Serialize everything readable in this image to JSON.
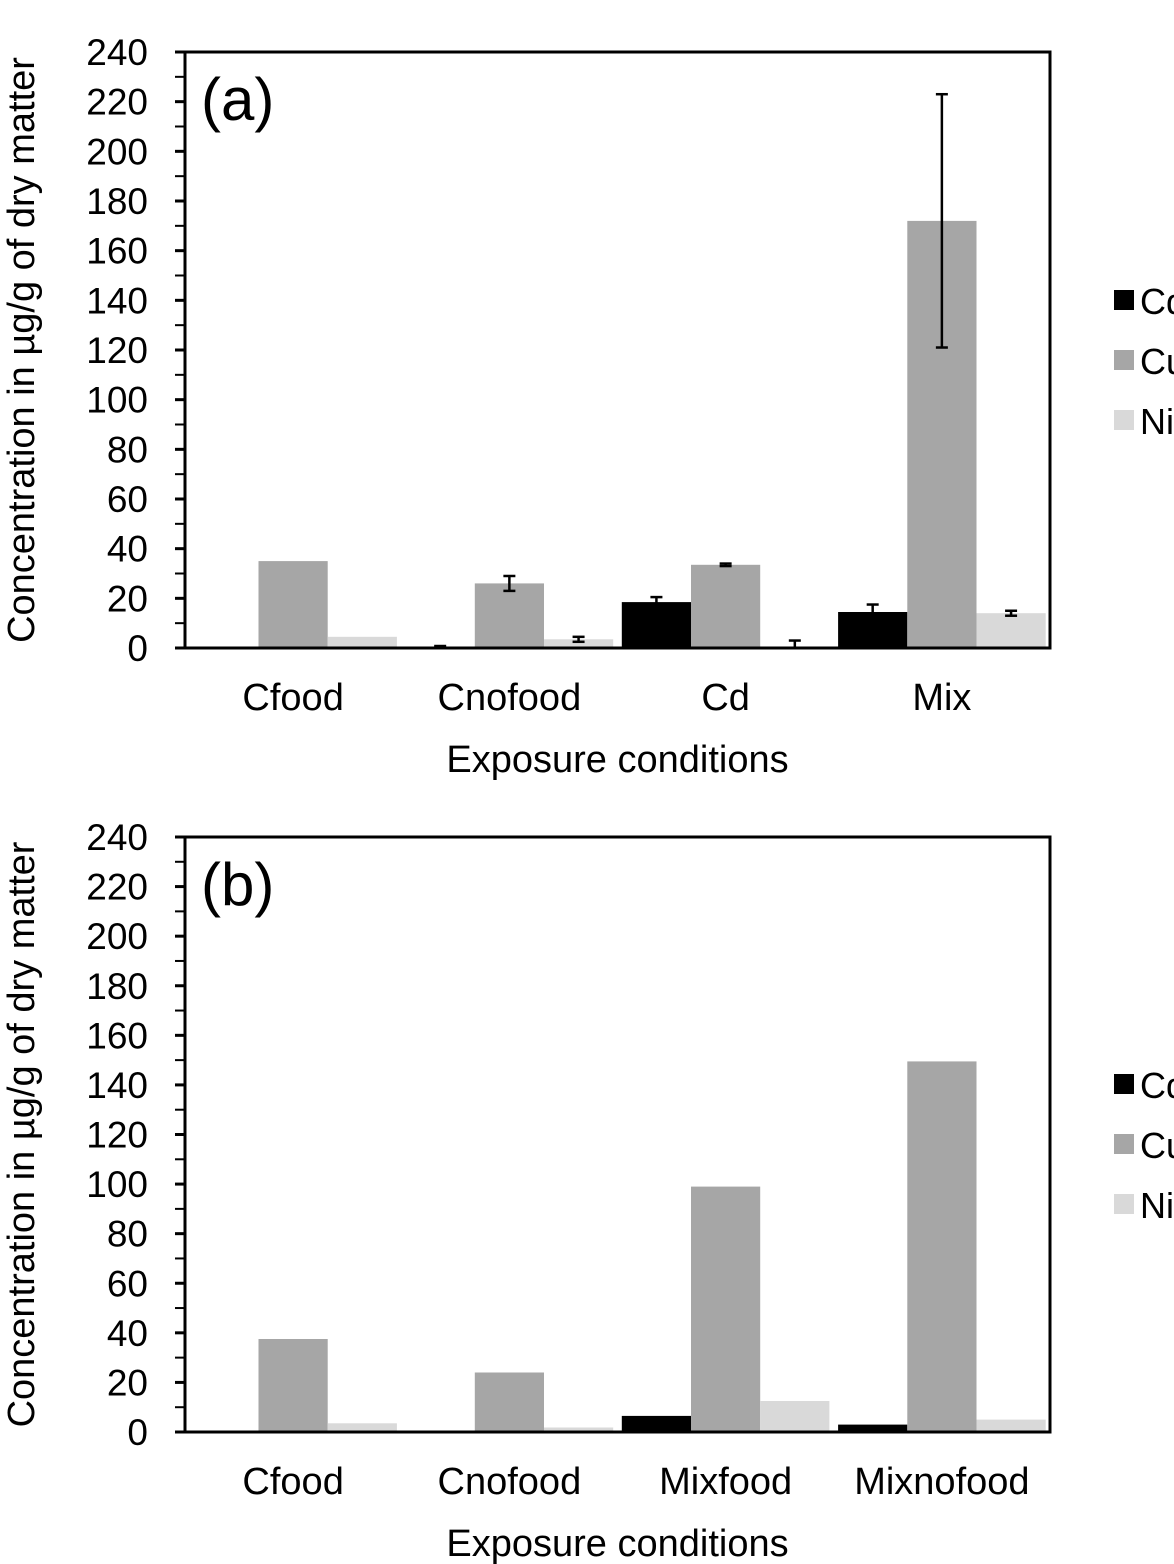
{
  "colors": {
    "Cd": "#000000",
    "Cu": "#a6a6a6",
    "Ni": "#d9d9d9",
    "axis": "#000000"
  },
  "chart_data": [
    {
      "type": "bar",
      "panel_label": "(a)",
      "xlabel": "Exposure conditions",
      "ylabel": "Concentration in µg/g of dry matter",
      "ylim": [
        0,
        240
      ],
      "yticks": [
        0,
        20,
        40,
        60,
        80,
        100,
        120,
        140,
        160,
        180,
        200,
        220,
        240
      ],
      "categories": [
        "Cfood",
        "Cnofood",
        "Cd",
        "Mix"
      ],
      "legend_position": "right",
      "grid": false,
      "series": [
        {
          "name": "Cd",
          "values": [
            0.3,
            0.5,
            18.5,
            14.5
          ],
          "errors": [
            0,
            0.3,
            2,
            3
          ]
        },
        {
          "name": "Cu",
          "values": [
            35,
            26,
            33.5,
            172
          ],
          "errors": [
            0,
            3,
            0.5,
            51
          ]
        },
        {
          "name": "Ni",
          "values": [
            4.5,
            3.5,
            0.5,
            14
          ],
          "errors": [
            0,
            1,
            2.5,
            1
          ]
        }
      ]
    },
    {
      "type": "bar",
      "panel_label": "(b)",
      "xlabel": "Exposure conditions",
      "ylabel": "Concentration in µg/g of dry matter",
      "ylim": [
        0,
        240
      ],
      "yticks": [
        0,
        20,
        40,
        60,
        80,
        100,
        120,
        140,
        160,
        180,
        200,
        220,
        240
      ],
      "categories": [
        "Cfood",
        "Cnofood",
        "Mixfood",
        "Mixnofood"
      ],
      "legend_position": "right",
      "grid": false,
      "series": [
        {
          "name": "Cd",
          "values": [
            0.2,
            0.2,
            6.5,
            3
          ],
          "errors": [
            0,
            0,
            0,
            0
          ]
        },
        {
          "name": "Cu",
          "values": [
            37.5,
            24,
            99,
            149.5
          ],
          "errors": [
            0,
            0,
            0,
            0
          ]
        },
        {
          "name": "Ni",
          "values": [
            3.5,
            1.8,
            12.5,
            5
          ],
          "errors": [
            0,
            0,
            0,
            0
          ]
        }
      ]
    }
  ]
}
